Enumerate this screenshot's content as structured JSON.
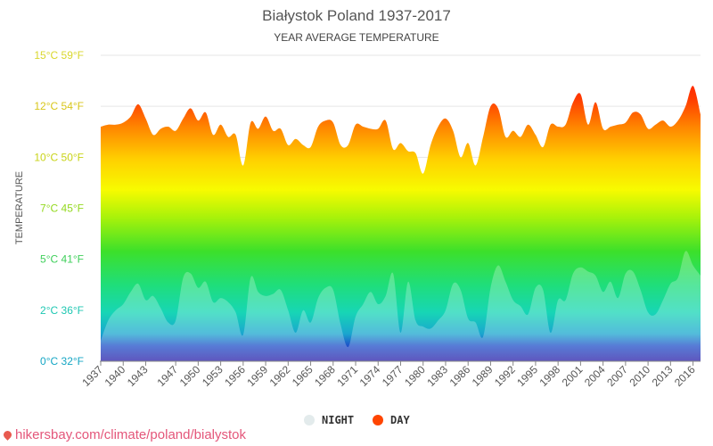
{
  "chart_data": {
    "type": "area",
    "title": "Białystok Poland 1937-2017",
    "subtitle": "YEAR AVERAGE TEMPERATURE",
    "ylabel": "TEMPERATURE",
    "ylim": [
      0,
      15
    ],
    "xlim": [
      1937,
      2017
    ],
    "yticks": [
      {
        "value": 0,
        "label": "0°C 32°F",
        "color": "#15a6c4"
      },
      {
        "value": 2.5,
        "label": "2°C 36°F",
        "color": "#1fc7b2"
      },
      {
        "value": 5,
        "label": "5°C 41°F",
        "color": "#3ecf5a"
      },
      {
        "value": 7.5,
        "label": "7°C 45°F",
        "color": "#93d91e"
      },
      {
        "value": 10,
        "label": "10°C 50°F",
        "color": "#c8d317"
      },
      {
        "value": 12.5,
        "label": "12°C 54°F",
        "color": "#d8c61a"
      },
      {
        "value": 15,
        "label": "15°C 59°F",
        "color": "#d9d72d"
      }
    ],
    "xticks": [
      1937,
      1940,
      1943,
      1947,
      1950,
      1953,
      1956,
      1959,
      1962,
      1965,
      1968,
      1971,
      1974,
      1977,
      1980,
      1983,
      1986,
      1989,
      1992,
      1995,
      1998,
      2001,
      2004,
      2007,
      2010,
      2013,
      2016
    ],
    "series": [
      {
        "name": "DAY",
        "color": "#ff4500",
        "x": [
          1937,
          1938,
          1939,
          1940,
          1941,
          1942,
          1943,
          1944,
          1945,
          1946,
          1947,
          1948,
          1949,
          1950,
          1951,
          1952,
          1953,
          1954,
          1955,
          1956,
          1957,
          1958,
          1959,
          1960,
          1961,
          1962,
          1963,
          1964,
          1965,
          1966,
          1967,
          1968,
          1969,
          1970,
          1971,
          1972,
          1973,
          1974,
          1975,
          1976,
          1977,
          1978,
          1979,
          1980,
          1981,
          1982,
          1983,
          1984,
          1985,
          1986,
          1987,
          1988,
          1989,
          1990,
          1991,
          1992,
          1993,
          1994,
          1995,
          1996,
          1997,
          1998,
          1999,
          2000,
          2001,
          2002,
          2003,
          2004,
          2005,
          2006,
          2007,
          2008,
          2009,
          2010,
          2011,
          2012,
          2013,
          2014,
          2015,
          2016,
          2017
        ],
        "values": [
          11.5,
          11.6,
          11.6,
          11.7,
          12.0,
          12.6,
          11.9,
          11.1,
          11.4,
          11.5,
          11.3,
          11.9,
          12.4,
          11.8,
          12.2,
          11.1,
          11.6,
          11.0,
          11.1,
          9.6,
          11.7,
          11.4,
          12.0,
          11.3,
          11.4,
          10.6,
          10.9,
          10.6,
          10.5,
          11.5,
          11.8,
          11.7,
          10.6,
          10.6,
          11.6,
          11.5,
          11.4,
          11.4,
          11.8,
          10.4,
          10.7,
          10.3,
          10.2,
          9.2,
          10.6,
          11.5,
          11.9,
          11.3,
          10.0,
          10.7,
          9.6,
          11.0,
          12.5,
          12.4,
          11.0,
          11.3,
          11.0,
          11.6,
          11.1,
          10.5,
          11.6,
          11.5,
          11.6,
          12.7,
          13.1,
          11.6,
          12.7,
          11.4,
          11.5,
          11.6,
          11.7,
          12.2,
          12.1,
          11.4,
          11.6,
          11.8,
          11.5,
          11.8,
          12.5,
          13.5,
          12.1
        ],
        "ylim": [
          0,
          15
        ]
      },
      {
        "name": "NIGHT",
        "color": "#e3ebec",
        "x": [
          1937,
          1938,
          1939,
          1940,
          1941,
          1942,
          1943,
          1944,
          1945,
          1946,
          1947,
          1948,
          1949,
          1950,
          1951,
          1952,
          1953,
          1954,
          1955,
          1956,
          1957,
          1958,
          1959,
          1960,
          1961,
          1962,
          1963,
          1964,
          1965,
          1966,
          1967,
          1968,
          1969,
          1970,
          1971,
          1972,
          1973,
          1974,
          1975,
          1976,
          1977,
          1978,
          1979,
          1980,
          1981,
          1982,
          1983,
          1984,
          1985,
          1986,
          1987,
          1988,
          1989,
          1990,
          1991,
          1992,
          1993,
          1994,
          1995,
          1996,
          1997,
          1998,
          1999,
          2000,
          2001,
          2002,
          2003,
          2004,
          2005,
          2006,
          2007,
          2008,
          2009,
          2010,
          2011,
          2012,
          2013,
          2014,
          2015,
          2016,
          2017
        ],
        "values": [
          1.0,
          2.0,
          2.5,
          2.8,
          3.4,
          3.8,
          3.0,
          3.2,
          2.6,
          1.9,
          2.0,
          4.1,
          4.3,
          3.6,
          3.9,
          2.9,
          3.1,
          2.9,
          2.4,
          1.3,
          4.1,
          3.4,
          3.2,
          3.3,
          3.5,
          2.5,
          1.4,
          2.5,
          1.9,
          3.1,
          3.6,
          3.5,
          1.8,
          0.7,
          2.2,
          2.8,
          3.4,
          2.8,
          3.2,
          4.3,
          1.4,
          3.9,
          2.0,
          1.7,
          1.6,
          2.0,
          2.5,
          3.8,
          3.5,
          2.1,
          1.9,
          1.2,
          3.6,
          4.7,
          3.9,
          3.0,
          2.7,
          2.3,
          3.6,
          3.5,
          1.4,
          3.0,
          3.0,
          4.3,
          4.6,
          4.4,
          4.2,
          3.4,
          3.9,
          3.1,
          4.3,
          4.4,
          3.5,
          2.4,
          2.3,
          3.0,
          3.8,
          4.1,
          5.4,
          4.7,
          4.2
        ],
        "ylim": [
          0,
          15
        ]
      }
    ],
    "legend": {
      "position": "bottom",
      "items": [
        {
          "label": "NIGHT",
          "color": "#e3ebec"
        },
        {
          "label": "DAY",
          "color": "#ff4500"
        }
      ]
    },
    "grid": true
  },
  "source": "hikersbay.com/climate/poland/bialystok"
}
